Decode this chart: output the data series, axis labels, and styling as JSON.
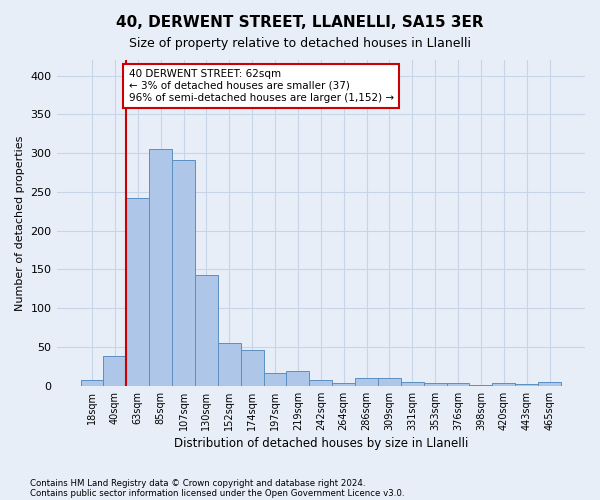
{
  "title1": "40, DERWENT STREET, LLANELLI, SA15 3ER",
  "title2": "Size of property relative to detached houses in Llanelli",
  "xlabel": "Distribution of detached houses by size in Llanelli",
  "ylabel": "Number of detached properties",
  "categories": [
    "18sqm",
    "40sqm",
    "63sqm",
    "85sqm",
    "107sqm",
    "130sqm",
    "152sqm",
    "174sqm",
    "197sqm",
    "219sqm",
    "242sqm",
    "264sqm",
    "286sqm",
    "309sqm",
    "331sqm",
    "353sqm",
    "376sqm",
    "398sqm",
    "420sqm",
    "443sqm",
    "465sqm"
  ],
  "values": [
    7,
    38,
    242,
    305,
    291,
    143,
    55,
    46,
    17,
    19,
    8,
    3,
    10,
    10,
    5,
    3,
    3,
    1,
    3,
    2,
    5
  ],
  "bar_color": "#aec6e8",
  "bar_edge_color": "#5a8fc2",
  "grid_color": "#c8d4e8",
  "vline_color": "#cc0000",
  "annotation_line1": "40 DERWENT STREET: 62sqm",
  "annotation_line2": "← 3% of detached houses are smaller (37)",
  "annotation_line3": "96% of semi-detached houses are larger (1,152) →",
  "annotation_box_color": "#ffffff",
  "annotation_box_edge_color": "#cc0000",
  "footnote1": "Contains HM Land Registry data © Crown copyright and database right 2024.",
  "footnote2": "Contains public sector information licensed under the Open Government Licence v3.0.",
  "ylim": [
    0,
    420
  ],
  "yticks": [
    0,
    50,
    100,
    150,
    200,
    250,
    300,
    350,
    400
  ],
  "bg_color": "#e8eef8",
  "plot_bg_color": "#e8eef8"
}
